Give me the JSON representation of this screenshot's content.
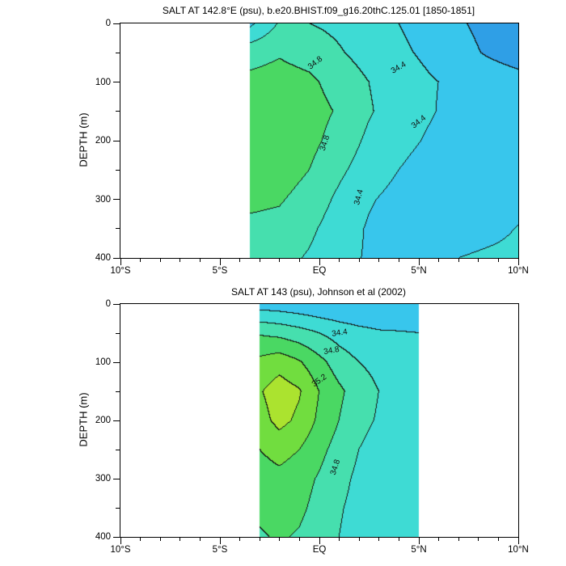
{
  "chart_data": {
    "type": "heatmap",
    "subtype": "filled_contour_latitude_depth_section",
    "units": "psu",
    "contour_interval": 0.2,
    "levels": [
      34.2,
      34.4,
      34.6,
      34.8,
      35.0,
      35.2
    ],
    "fill_colors": [
      "#2f9fe6",
      "#38c6ec",
      "#3edbd4",
      "#46dfae",
      "#4ad863",
      "#71dd3f",
      "#abe32f"
    ],
    "line_color": "#141414",
    "panels": [
      {
        "title": "SALT AT 142.8°E (psu), b.e20.BHIST.f09_g16.20thC.125.01 [1850-1851]",
        "ylabel": "DEPTH (m)",
        "xlim": [
          -10,
          10
        ],
        "ylim": [
          0,
          400
        ],
        "x_ticks": {
          "values": [
            -10,
            -5,
            0,
            5,
            10
          ],
          "labels": [
            "10°S",
            "5°S",
            "EQ",
            "5°N",
            "10°N"
          ],
          "minor_step": 1
        },
        "y_ticks": {
          "values": [
            0,
            100,
            200,
            300,
            400
          ],
          "labels": [
            "0",
            "100",
            "200",
            "300",
            "400"
          ],
          "minor_step": 50
        },
        "lats": [
          -3.5,
          -2,
          -0.5,
          1,
          2.5,
          4,
          5.5,
          7,
          8.5,
          10
        ],
        "depths": [
          0,
          50,
          100,
          150,
          200,
          250,
          300,
          350,
          400
        ],
        "values": [
          [
            34.35,
            34.62,
            34.6,
            34.55,
            34.48,
            34.4,
            34.32,
            34.22,
            34.15,
            34.1
          ],
          [
            34.72,
            34.78,
            34.72,
            34.62,
            34.52,
            34.44,
            34.36,
            34.26,
            34.18,
            34.12
          ],
          [
            34.85,
            34.88,
            34.84,
            34.72,
            34.6,
            34.5,
            34.42,
            34.36,
            34.3,
            34.26
          ],
          [
            34.9,
            34.93,
            34.88,
            34.78,
            34.62,
            34.5,
            34.42,
            34.34,
            34.3,
            34.28
          ],
          [
            34.92,
            34.94,
            34.86,
            34.72,
            34.56,
            34.46,
            34.38,
            34.3,
            34.26,
            34.28
          ],
          [
            34.9,
            34.9,
            34.8,
            34.64,
            34.5,
            34.4,
            34.32,
            34.26,
            34.24,
            34.3
          ],
          [
            34.84,
            34.82,
            34.72,
            34.56,
            34.42,
            34.34,
            34.28,
            34.24,
            34.24,
            34.32
          ],
          [
            34.76,
            34.74,
            34.64,
            34.5,
            34.38,
            34.32,
            34.28,
            34.28,
            34.33,
            34.41
          ],
          [
            34.7,
            34.66,
            34.58,
            34.46,
            34.38,
            34.36,
            34.36,
            34.4,
            34.44,
            34.46
          ]
        ],
        "contour_labels": [
          {
            "text": "34.8",
            "fx": 0.49,
            "fy": 0.17,
            "rot": -38
          },
          {
            "text": "34.4",
            "fx": 0.7,
            "fy": 0.19,
            "rot": -30
          },
          {
            "text": "34.4",
            "fx": 0.75,
            "fy": 0.42,
            "rot": -38
          },
          {
            "text": "34.8",
            "fx": 0.515,
            "fy": 0.51,
            "rot": -72
          },
          {
            "text": "34.4",
            "fx": 0.6,
            "fy": 0.74,
            "rot": -75
          }
        ]
      },
      {
        "title": "SALT AT 143 (psu), Johnson et al (2002)",
        "ylabel": "DEPTH (m)",
        "xlim": [
          -10,
          10
        ],
        "ylim": [
          0,
          400
        ],
        "x_ticks": {
          "values": [
            -10,
            -5,
            0,
            5,
            10
          ],
          "labels": [
            "10°S",
            "5°S",
            "EQ",
            "5°N",
            "10°N"
          ],
          "minor_step": 1
        },
        "y_ticks": {
          "values": [
            0,
            100,
            200,
            300,
            400
          ],
          "labels": [
            "0",
            "100",
            "200",
            "300",
            "400"
          ],
          "minor_step": 50
        },
        "lats": [
          -3,
          -2,
          -1,
          0,
          1,
          2,
          3,
          4,
          5
        ],
        "depths": [
          0,
          50,
          100,
          150,
          200,
          250,
          300,
          350,
          400
        ],
        "values": [
          [
            34.3,
            34.28,
            34.25,
            34.22,
            34.2,
            34.2,
            34.22,
            34.25,
            34.28
          ],
          [
            34.78,
            34.74,
            34.68,
            34.6,
            34.52,
            34.46,
            34.42,
            34.41,
            34.4
          ],
          [
            35.05,
            35.12,
            35.02,
            34.86,
            34.7,
            34.6,
            34.54,
            34.5,
            34.48
          ],
          [
            35.18,
            35.3,
            35.22,
            35.0,
            34.84,
            34.7,
            34.6,
            34.55,
            34.52
          ],
          [
            35.12,
            35.26,
            35.16,
            34.96,
            34.8,
            34.66,
            34.58,
            34.52,
            34.5
          ],
          [
            35.0,
            35.08,
            35.0,
            34.86,
            34.72,
            34.6,
            34.52,
            34.48,
            34.46
          ],
          [
            34.9,
            34.94,
            34.88,
            34.78,
            34.66,
            34.56,
            34.5,
            34.46,
            34.44
          ],
          [
            34.84,
            34.88,
            34.84,
            34.74,
            34.62,
            34.54,
            34.48,
            34.44,
            34.42
          ],
          [
            34.78,
            34.82,
            34.78,
            34.7,
            34.6,
            34.52,
            34.46,
            34.43,
            34.41
          ]
        ],
        "contour_labels": [
          {
            "text": "34.4",
            "fx": 0.55,
            "fy": 0.125,
            "rot": -8
          },
          {
            "text": "34.8",
            "fx": 0.53,
            "fy": 0.2,
            "rot": -10
          },
          {
            "text": "35.2",
            "fx": 0.5,
            "fy": 0.33,
            "rot": -35
          },
          {
            "text": "34.8",
            "fx": 0.54,
            "fy": 0.7,
            "rot": -72
          }
        ]
      }
    ]
  }
}
